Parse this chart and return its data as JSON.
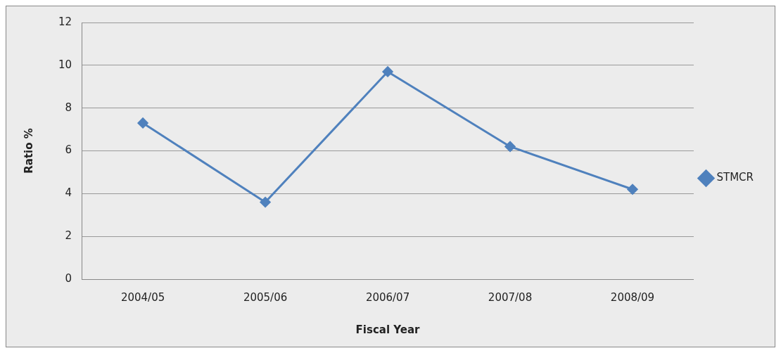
{
  "chart_data": {
    "type": "line",
    "xlabel": "Fiscal Year",
    "ylabel": "Ratio %",
    "categories": [
      "2004/05",
      "2005/06",
      "2006/07",
      "2007/08",
      "2008/09"
    ],
    "series": [
      {
        "name": "STMCR",
        "color": "#4f81bd",
        "values": [
          7.3,
          3.6,
          9.7,
          6.2,
          4.2
        ]
      }
    ],
    "ylim": [
      0,
      12
    ],
    "yticks": [
      0,
      2,
      4,
      6,
      8,
      10,
      12
    ],
    "grid": "y",
    "legend": "right",
    "marker": "diamond",
    "line_style": "solid"
  }
}
